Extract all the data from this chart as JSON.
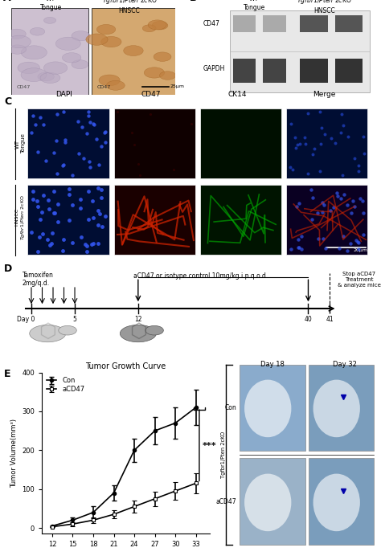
{
  "panel_A_label": "A",
  "panel_B_label": "B",
  "panel_C_label": "C",
  "panel_D_label": "D",
  "panel_E_label": "E",
  "scale_25um": "25μm",
  "scale_20um": "20μm",
  "tamoxifen_text": "Tamoxifen\n2mg/q.d.",
  "treatment_text": "aCD47 or isotype control 10mg/kg i.p q.o.d",
  "stop_text": "Stop aCD47\nTreatment\n& analyze mice",
  "tumor_title": "Tumor Growth Curve",
  "con_label": "Con",
  "acd47_label": "aCD47",
  "ylabel_tumor": "Tumor Volume(mm³)",
  "con_x": [
    12,
    15,
    18,
    21,
    24,
    27,
    30,
    33
  ],
  "con_y": [
    5,
    20,
    40,
    90,
    200,
    250,
    270,
    310
  ],
  "con_err": [
    2,
    8,
    15,
    20,
    30,
    35,
    40,
    45
  ],
  "acd47_x": [
    12,
    15,
    18,
    21,
    24,
    27,
    30,
    33
  ],
  "acd47_y": [
    3,
    10,
    20,
    35,
    55,
    75,
    95,
    115
  ],
  "acd47_err": [
    1,
    5,
    8,
    10,
    15,
    18,
    22,
    25
  ],
  "sig_label": "***",
  "day18_label": "Day 18",
  "day32_label": "Day 32",
  "photo_con_label": "Con",
  "photo_acd47_label": "aCD47",
  "tgfbr1_pten_2cko_label": "Tgfbr1/Pten 2cKO",
  "bg_color": "#ffffff",
  "img_left_color": "#cdc0d0",
  "img_right_color": "#d4a870",
  "wt_dapi_color": "#000d33",
  "wt_cd47_color": "#0f0000",
  "wt_ck14_color": "#000f00",
  "wt_merge_color": "#000d33",
  "hnscc_dapi_color": "#000d33",
  "hnscc_cd47_color": "#1a0000",
  "hnscc_ck14_color": "#001400",
  "hnscc_merge_color": "#0a0022",
  "photo_color1": "#8aabcc",
  "photo_color2": "#7a9dbc",
  "photo_color3": "#9ab2c8",
  "photo_color4": "#7a9dbc",
  "blot_bg": "#e8e8e8",
  "cd47_band_wt": "#aaaaaa",
  "cd47_band_hnscc": "#555555",
  "gapdh_band_wt": "#444444",
  "gapdh_band_hnscc": "#333333"
}
